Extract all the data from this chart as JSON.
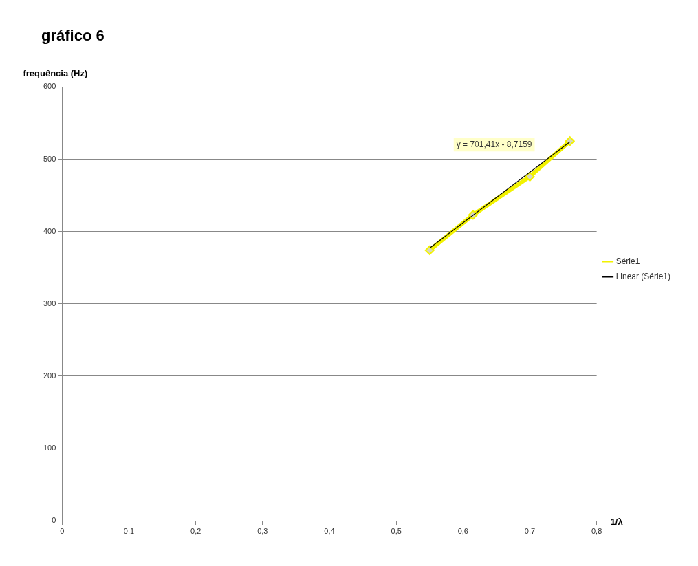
{
  "chart_data": {
    "type": "line",
    "title": "gráfico 6",
    "xlabel": "1/λ",
    "ylabel": "frequência (Hz)",
    "x": [
      0.55,
      0.615,
      0.7,
      0.76
    ],
    "series": [
      {
        "name": "Série1",
        "color": "#f2f200",
        "values": [
          374,
          423,
          476,
          525
        ],
        "marker": "diamond"
      },
      {
        "name": "Linear (Série1)",
        "color": "#000000",
        "type": "line",
        "x": [
          0.55,
          0.76
        ],
        "values": [
          377,
          524
        ],
        "marker": "none"
      }
    ],
    "annotations": [
      "y = 701,41x - 8,7159"
    ],
    "xlim": [
      0,
      0.8
    ],
    "xticks": [
      0,
      {
        "value": 0.1,
        "label": "0,1"
      },
      {
        "value": 0.2,
        "label": "0,2"
      },
      {
        "value": 0.3,
        "label": "0,3"
      },
      {
        "value": 0.4,
        "label": "0,4"
      },
      {
        "value": 0.5,
        "label": "0,5"
      },
      {
        "value": 0.6,
        "label": "0,6"
      },
      {
        "value": 0.7,
        "label": "0,7"
      },
      {
        "value": 0.8,
        "label": "0,8"
      }
    ],
    "ylim": [
      0,
      600
    ],
    "yticks": [
      0,
      100,
      200,
      300,
      400,
      500,
      600
    ],
    "grid": "y",
    "legend": "right"
  }
}
